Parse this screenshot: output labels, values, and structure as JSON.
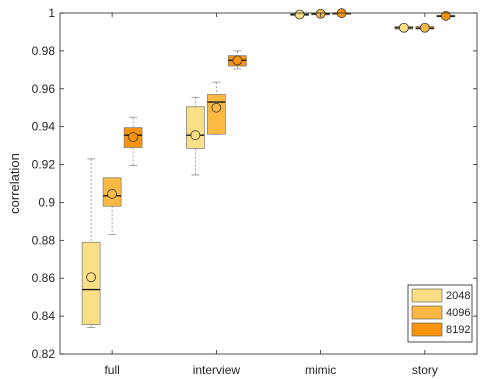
{
  "chart_data": {
    "type": "box",
    "ylabel": "correlation",
    "xlabel": "",
    "ylim": [
      0.82,
      1.0
    ],
    "yticks": [
      0.82,
      0.84,
      0.86,
      0.88,
      0.9,
      0.92,
      0.94,
      0.96,
      0.98,
      1
    ],
    "ytick_labels": [
      "0.82",
      "0.84",
      "0.86",
      "0.88",
      "0.9",
      "0.92",
      "0.94",
      "0.96",
      "0.98",
      "1"
    ],
    "categories": [
      "full",
      "interview",
      "mimic",
      "story"
    ],
    "grid": false,
    "legend": {
      "placement": "bottom-right"
    },
    "series": [
      {
        "name": "2048",
        "color": "#f9df86",
        "boxes": [
          {
            "whisker_low": 0.834,
            "q1": 0.8355,
            "median": 0.854,
            "q3": 0.879,
            "whisker_high": 0.923,
            "mean": 0.8605
          },
          {
            "whisker_low": 0.9145,
            "q1": 0.9285,
            "median": 0.9355,
            "q3": 0.9505,
            "whisker_high": 0.9555,
            "mean": 0.9355
          },
          {
            "whisker_low": 0.9985,
            "q1": 0.999,
            "median": 0.9992,
            "q3": 0.9995,
            "whisker_high": 0.9998,
            "mean": 0.9992
          },
          {
            "whisker_low": 0.991,
            "q1": 0.9915,
            "median": 0.9922,
            "q3": 0.993,
            "whisker_high": 0.9935,
            "mean": 0.9922
          }
        ]
      },
      {
        "name": "4096",
        "color": "#fbb842",
        "boxes": [
          {
            "whisker_low": 0.883,
            "q1": 0.898,
            "median": 0.9035,
            "q3": 0.913,
            "whisker_high": 0.913,
            "mean": 0.9045
          },
          {
            "whisker_low": 0.936,
            "q1": 0.936,
            "median": 0.953,
            "q3": 0.957,
            "whisker_high": 0.9635,
            "mean": 0.95
          },
          {
            "whisker_low": 0.9992,
            "q1": 0.9994,
            "median": 0.9996,
            "q3": 0.9998,
            "whisker_high": 0.9999,
            "mean": 0.9996
          },
          {
            "whisker_low": 0.991,
            "q1": 0.9915,
            "median": 0.992,
            "q3": 0.993,
            "whisker_high": 0.9935,
            "mean": 0.9922
          }
        ]
      },
      {
        "name": "8192",
        "color": "#f7930e",
        "boxes": [
          {
            "whisker_low": 0.9195,
            "q1": 0.929,
            "median": 0.9355,
            "q3": 0.9395,
            "whisker_high": 0.945,
            "mean": 0.9345
          },
          {
            "whisker_low": 0.9705,
            "q1": 0.972,
            "median": 0.975,
            "q3": 0.9775,
            "whisker_high": 0.98,
            "mean": 0.975
          },
          {
            "whisker_low": 0.9997,
            "q1": 0.9998,
            "median": 0.9999,
            "q3": 1.0,
            "whisker_high": 1.0,
            "mean": 0.9999
          },
          {
            "whisker_low": 0.9978,
            "q1": 0.998,
            "median": 0.9983,
            "q3": 0.9988,
            "whisker_high": 0.999,
            "mean": 0.9985
          }
        ]
      }
    ]
  }
}
